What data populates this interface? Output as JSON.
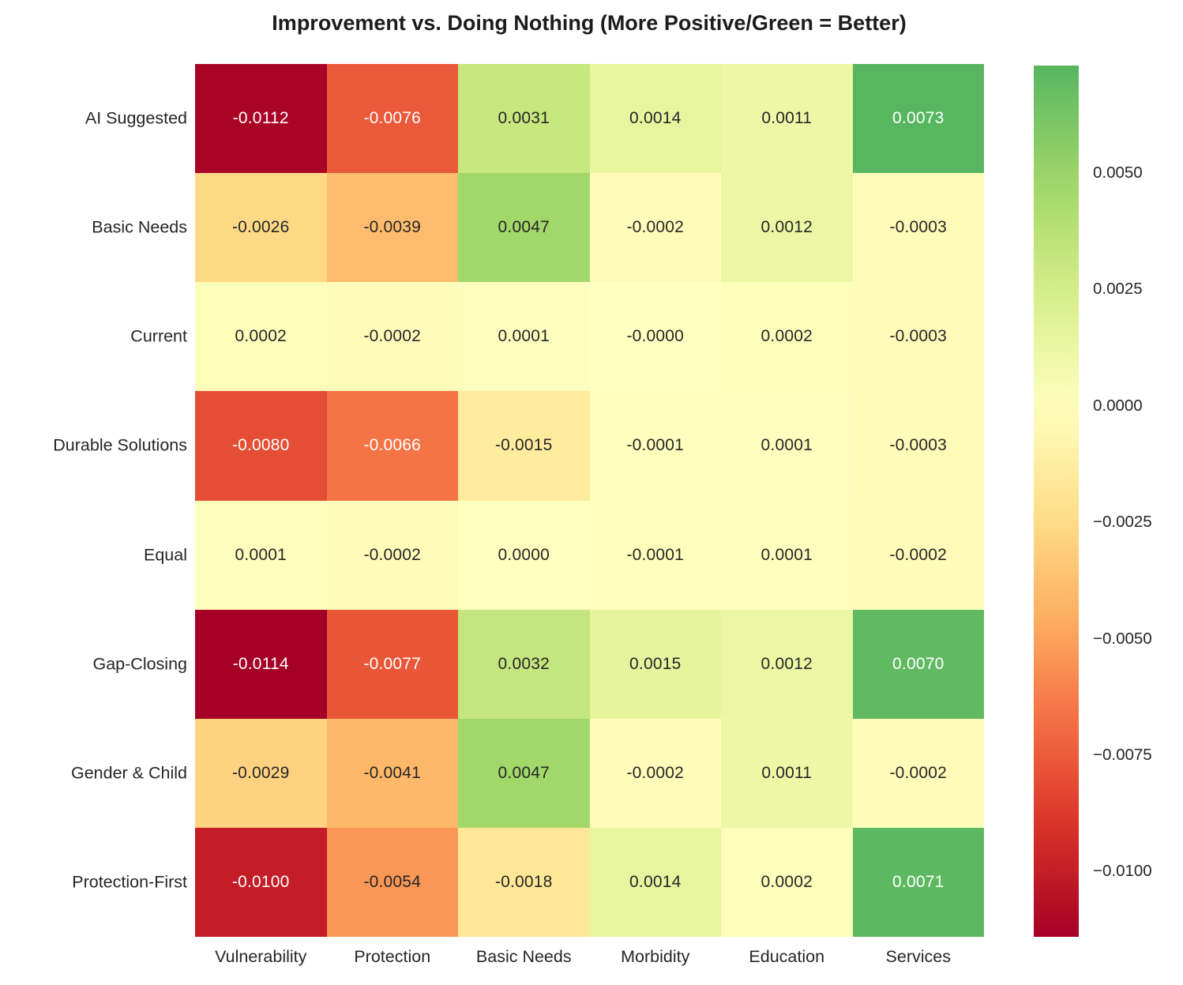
{
  "chart_data": {
    "type": "heatmap",
    "title": "Improvement vs. Doing Nothing (More Positive/Green = Better)",
    "rows": [
      "AI Suggested",
      "Basic Needs",
      "Current",
      "Durable Solutions",
      "Equal",
      "Gap-Closing",
      "Gender & Child",
      "Protection-First"
    ],
    "columns": [
      "Vulnerability",
      "Protection",
      "Basic Needs",
      "Morbidity",
      "Education",
      "Services"
    ],
    "values": [
      [
        "-0.0112",
        "-0.0076",
        "0.0031",
        "0.0014",
        "0.0011",
        "0.0073"
      ],
      [
        "-0.0026",
        "-0.0039",
        "0.0047",
        "-0.0002",
        "0.0012",
        "-0.0003"
      ],
      [
        "0.0002",
        "-0.0002",
        "0.0001",
        "-0.0000",
        "0.0002",
        "-0.0003"
      ],
      [
        "-0.0080",
        "-0.0066",
        "-0.0015",
        "-0.0001",
        "0.0001",
        "-0.0003"
      ],
      [
        "0.0001",
        "-0.0002",
        "0.0000",
        "-0.0001",
        "0.0001",
        "-0.0002"
      ],
      [
        "-0.0114",
        "-0.0077",
        "0.0032",
        "0.0015",
        "0.0012",
        "0.0070"
      ],
      [
        "-0.0029",
        "-0.0041",
        "0.0047",
        "-0.0002",
        "0.0011",
        "-0.0002"
      ],
      [
        "-0.0100",
        "-0.0054",
        "-0.0018",
        "0.0014",
        "0.0002",
        "0.0071"
      ]
    ],
    "colormap": "RdYlGn",
    "center": 0,
    "vmin": -0.0114,
    "vmax": 0.0073,
    "colorbar_ticks": [
      "0.0050",
      "0.0025",
      "0.0000",
      "−0.0025",
      "−0.0050",
      "−0.0075",
      "−0.0100"
    ],
    "legend_position": "right",
    "annotation_colors": {
      "light_text": "#ffffff",
      "dark_text": "#262626"
    }
  }
}
